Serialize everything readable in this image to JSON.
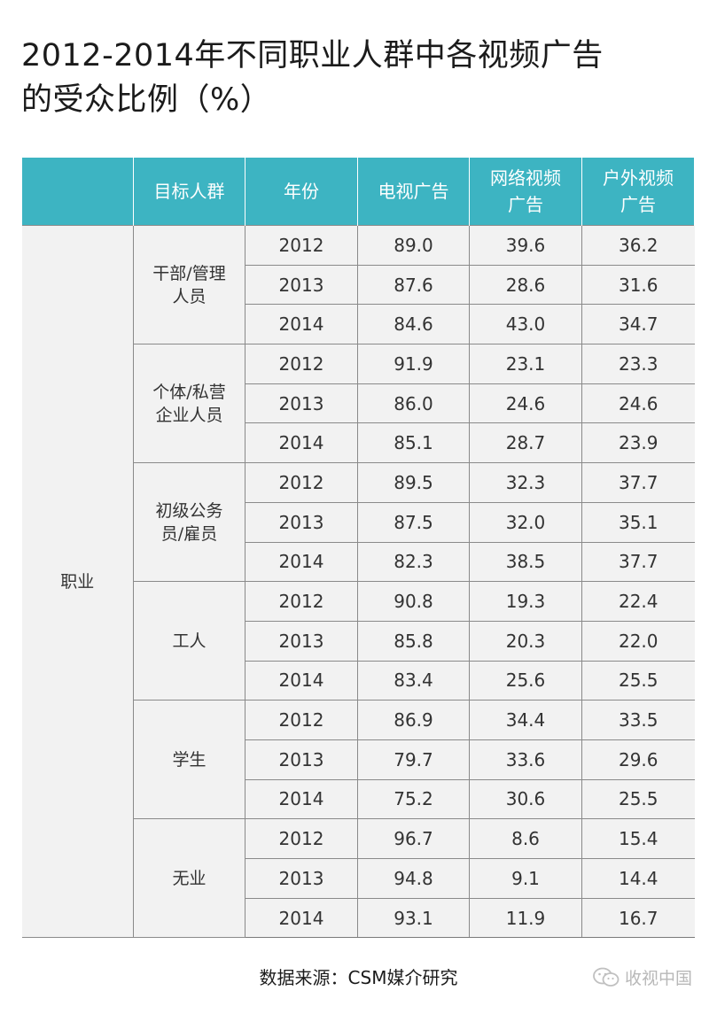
{
  "title": {
    "line1": "2012-2014年不同职业人群中各视频广告",
    "line2": "的受众比例（%）"
  },
  "chart_data": {
    "type": "table",
    "headers": [
      "",
      "目标人群",
      "年份",
      "电视广告",
      "网络视频\n广告",
      "户外视频\n广告"
    ],
    "category": "职业",
    "groups": [
      {
        "name": "干部/管理\n人员",
        "rows": [
          {
            "year": "2012",
            "tv": "89.0",
            "web": "39.6",
            "outdoor": "36.2"
          },
          {
            "year": "2013",
            "tv": "87.6",
            "web": "28.6",
            "outdoor": "31.6"
          },
          {
            "year": "2014",
            "tv": "84.6",
            "web": "43.0",
            "outdoor": "34.7"
          }
        ]
      },
      {
        "name": "个体/私营\n企业人员",
        "rows": [
          {
            "year": "2012",
            "tv": "91.9",
            "web": "23.1",
            "outdoor": "23.3"
          },
          {
            "year": "2013",
            "tv": "86.0",
            "web": "24.6",
            "outdoor": "24.6"
          },
          {
            "year": "2014",
            "tv": "85.1",
            "web": "28.7",
            "outdoor": "23.9"
          }
        ]
      },
      {
        "name": "初级公务\n员/雇员",
        "rows": [
          {
            "year": "2012",
            "tv": "89.5",
            "web": "32.3",
            "outdoor": "37.7"
          },
          {
            "year": "2013",
            "tv": "87.5",
            "web": "32.0",
            "outdoor": "35.1"
          },
          {
            "year": "2014",
            "tv": "82.3",
            "web": "38.5",
            "outdoor": "37.7"
          }
        ]
      },
      {
        "name": "工人",
        "rows": [
          {
            "year": "2012",
            "tv": "90.8",
            "web": "19.3",
            "outdoor": "22.4"
          },
          {
            "year": "2013",
            "tv": "85.8",
            "web": "20.3",
            "outdoor": "22.0"
          },
          {
            "year": "2014",
            "tv": "83.4",
            "web": "25.6",
            "outdoor": "25.5"
          }
        ]
      },
      {
        "name": "学生",
        "rows": [
          {
            "year": "2012",
            "tv": "86.9",
            "web": "34.4",
            "outdoor": "33.5"
          },
          {
            "year": "2013",
            "tv": "79.7",
            "web": "33.6",
            "outdoor": "29.6"
          },
          {
            "year": "2014",
            "tv": "75.2",
            "web": "30.6",
            "outdoor": "25.5"
          }
        ]
      },
      {
        "name": "无业",
        "rows": [
          {
            "year": "2012",
            "tv": "96.7",
            "web": "8.6",
            "outdoor": "15.4"
          },
          {
            "year": "2013",
            "tv": "94.8",
            "web": "9.1",
            "outdoor": "14.4"
          },
          {
            "year": "2014",
            "tv": "93.1",
            "web": "11.9",
            "outdoor": "16.7"
          }
        ]
      }
    ]
  },
  "source": "数据来源：CSM媒介研究",
  "watermark": {
    "text": "收视中国",
    "icon": "wechat-icon"
  },
  "colors": {
    "header_bg": "#3db4c2",
    "cell_bg": "#f2f2f2",
    "header_text": "#ffffff"
  }
}
